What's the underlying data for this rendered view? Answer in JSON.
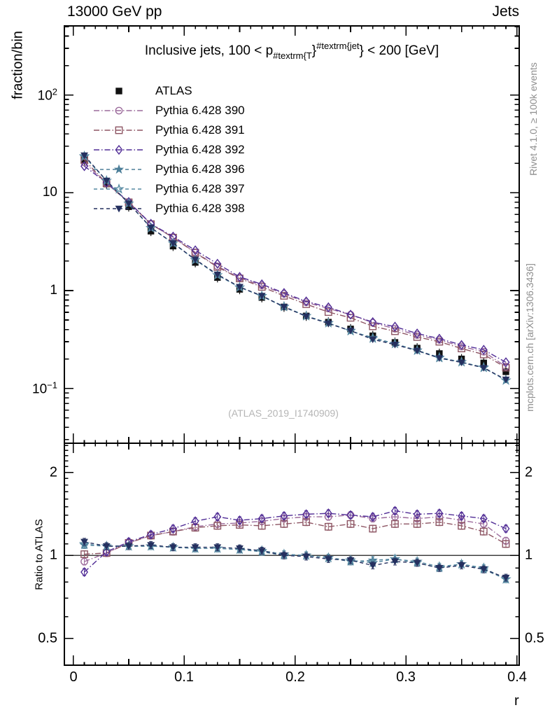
{
  "header": {
    "left": "13000 GeV pp",
    "right": "Jets"
  },
  "plot_title_parts": [
    {
      "type": "base",
      "text": "Inclusive jets, 100 < p"
    },
    {
      "type": "sub",
      "text": "#textrm{T"
    },
    {
      "type": "base",
      "text": "}"
    },
    {
      "type": "sup",
      "text": "#textrm{jet"
    },
    {
      "type": "base",
      "text": "} < 200 [GeV]"
    }
  ],
  "side_texts": {
    "top_right": "Rivet 4.1.0, ≥ 100k events",
    "bottom_right": "mcplots.cern.ch [arXiv:1306.3436]"
  },
  "watermark": "(ATLAS_2019_I1740909)",
  "axes": {
    "main_ylabel": "fraction/bin",
    "ratio_ylabel": "Ratio to ATLAS",
    "xlabel": "r",
    "main_ytick_labels": [
      {
        "value": 100,
        "base": "10",
        "exp": "2"
      },
      {
        "value": 10,
        "base": "10",
        "exp": ""
      },
      {
        "value": 1,
        "base": "1",
        "exp": ""
      },
      {
        "value": 0.1,
        "base": "10",
        "exp": "−1"
      }
    ],
    "xtick_labels": [
      {
        "value": 0,
        "label": "0"
      },
      {
        "value": 0.1,
        "label": "0.1"
      },
      {
        "value": 0.2,
        "label": "0.2"
      },
      {
        "value": 0.3,
        "label": "0.3"
      },
      {
        "value": 0.4,
        "label": "0.4"
      }
    ],
    "ratio_ytick_labels": [
      {
        "value": 2,
        "label": "2"
      },
      {
        "value": 1,
        "label": "1"
      },
      {
        "value": 0.5,
        "label": "0.5"
      }
    ]
  },
  "legend": [
    {
      "label": "ATLAS",
      "marker": "square-filled",
      "color": "#111111",
      "linestyle": "none"
    },
    {
      "label": "Pythia 6.428 390",
      "marker": "circle-open",
      "color": "#9c6b9c",
      "linestyle": "dashdot"
    },
    {
      "label": "Pythia 6.428 391",
      "marker": "square-open",
      "color": "#8d5563",
      "linestyle": "dashdot"
    },
    {
      "label": "Pythia 6.428 392",
      "marker": "diamond-open",
      "color": "#512d96",
      "linestyle": "dashdot"
    },
    {
      "label": "Pythia 6.428 396",
      "marker": "star-filled",
      "color": "#4d7f99",
      "linestyle": "dashed"
    },
    {
      "label": "Pythia 6.428 397",
      "marker": "star-open",
      "color": "#578aa2",
      "linestyle": "dashed"
    },
    {
      "label": "Pythia 6.428 398",
      "marker": "triangle-down-filled",
      "color": "#25305f",
      "linestyle": "dashed"
    }
  ],
  "chart_data": {
    "type": "line",
    "title": "Inclusive jets, 100 < pT^jet < 200 [GeV]",
    "xlabel": "r",
    "ylabel": "fraction/bin",
    "ratio_ylabel": "Ratio to ATLAS",
    "x_axis_scale": "linear",
    "y_axis_scale": "log",
    "ratio_y_axis_scale": "log",
    "xlim": [
      -0.008,
      0.402
    ],
    "main_ylim": [
      0.0275,
      508
    ],
    "ratio_ylim": [
      0.4,
      2.55
    ],
    "ratio_reference": 1,
    "x": [
      0.01,
      0.03,
      0.05,
      0.07,
      0.09,
      0.11,
      0.13,
      0.15,
      0.17,
      0.19,
      0.21,
      0.23,
      0.25,
      0.27,
      0.29,
      0.31,
      0.33,
      0.35,
      0.37,
      0.39
    ],
    "atlas": {
      "name": "ATLAS",
      "marker": "square-filled",
      "color": "#111111",
      "values": [
        21.5,
        12.3,
        7.2,
        4.05,
        2.85,
        1.94,
        1.36,
        1.03,
        0.85,
        0.68,
        0.55,
        0.475,
        0.405,
        0.345,
        0.295,
        0.258,
        0.227,
        0.2,
        0.182,
        0.148
      ]
    },
    "series": [
      {
        "name": "Pythia 6.428 390",
        "marker": "circle-open",
        "color": "#9c6b9c",
        "linestyle": "dashdot",
        "values": [
          20.4,
          12.5,
          7.99,
          4.78,
          3.48,
          2.46,
          1.77,
          1.35,
          1.13,
          0.925,
          0.759,
          0.656,
          0.567,
          0.469,
          0.407,
          0.351,
          0.313,
          0.268,
          0.237,
          0.167
        ],
        "ratio": [
          0.95,
          1.02,
          1.11,
          1.18,
          1.22,
          1.27,
          1.3,
          1.31,
          1.33,
          1.36,
          1.38,
          1.38,
          1.4,
          1.36,
          1.38,
          1.36,
          1.38,
          1.34,
          1.3,
          1.13
        ]
      },
      {
        "name": "Pythia 6.428 391",
        "marker": "square-open",
        "color": "#8d5563",
        "linestyle": "dashdot",
        "values": [
          21.7,
          12.5,
          7.99,
          4.78,
          3.48,
          2.44,
          1.74,
          1.33,
          1.09,
          0.884,
          0.726,
          0.603,
          0.527,
          0.431,
          0.384,
          0.335,
          0.3,
          0.256,
          0.222,
          0.163
        ],
        "ratio": [
          1.01,
          1.02,
          1.11,
          1.18,
          1.22,
          1.26,
          1.28,
          1.29,
          1.28,
          1.3,
          1.32,
          1.27,
          1.3,
          1.25,
          1.3,
          1.3,
          1.32,
          1.28,
          1.22,
          1.1
        ]
      },
      {
        "name": "Pythia 6.428 392",
        "marker": "diamond-open",
        "color": "#512d96",
        "linestyle": "dashdot",
        "values": [
          18.7,
          12.7,
          8.06,
          4.82,
          3.56,
          2.58,
          1.88,
          1.38,
          1.16,
          0.945,
          0.776,
          0.675,
          0.567,
          0.476,
          0.428,
          0.364,
          0.322,
          0.278,
          0.248,
          0.185
        ],
        "ratio": [
          0.87,
          1.03,
          1.12,
          1.19,
          1.25,
          1.33,
          1.38,
          1.34,
          1.36,
          1.39,
          1.41,
          1.42,
          1.4,
          1.38,
          1.45,
          1.41,
          1.42,
          1.39,
          1.36,
          1.25
        ]
      },
      {
        "name": "Pythia 6.428 396",
        "marker": "star-filled",
        "color": "#4d7f99",
        "linestyle": "dashed",
        "values": [
          23.4,
          13.3,
          7.78,
          4.37,
          3.05,
          2.06,
          1.44,
          1.08,
          0.876,
          0.68,
          0.55,
          0.466,
          0.385,
          0.331,
          0.286,
          0.243,
          0.204,
          0.186,
          0.162,
          0.121
        ],
        "ratio": [
          1.09,
          1.08,
          1.08,
          1.08,
          1.07,
          1.06,
          1.06,
          1.05,
          1.03,
          1.0,
          1.0,
          0.98,
          0.95,
          0.96,
          0.97,
          0.94,
          0.9,
          0.93,
          0.89,
          0.82
        ]
      },
      {
        "name": "Pythia 6.428 397",
        "marker": "star-open",
        "color": "#578aa2",
        "linestyle": "dashed",
        "values": [
          23.7,
          13.3,
          7.78,
          4.37,
          3.05,
          2.06,
          1.44,
          1.08,
          0.884,
          0.687,
          0.55,
          0.466,
          0.389,
          0.324,
          0.286,
          0.245,
          0.207,
          0.186,
          0.164,
          0.121
        ],
        "ratio": [
          1.1,
          1.08,
          1.08,
          1.08,
          1.07,
          1.06,
          1.06,
          1.05,
          1.04,
          1.01,
          1.0,
          0.98,
          0.96,
          0.94,
          0.97,
          0.95,
          0.91,
          0.93,
          0.9,
          0.82
        ]
      },
      {
        "name": "Pythia 6.428 398",
        "marker": "triangle-down-filled",
        "color": "#25305f",
        "linestyle": "dashed",
        "values": [
          24.1,
          13.3,
          7.78,
          4.41,
          3.05,
          2.08,
          1.46,
          1.09,
          0.884,
          0.68,
          0.545,
          0.461,
          0.389,
          0.317,
          0.28,
          0.243,
          0.204,
          0.184,
          0.162,
          0.123
        ],
        "ratio": [
          1.12,
          1.08,
          1.08,
          1.09,
          1.07,
          1.07,
          1.07,
          1.06,
          1.04,
          1.0,
          0.99,
          0.97,
          0.96,
          0.92,
          0.95,
          0.94,
          0.9,
          0.92,
          0.89,
          0.83
        ]
      }
    ]
  }
}
